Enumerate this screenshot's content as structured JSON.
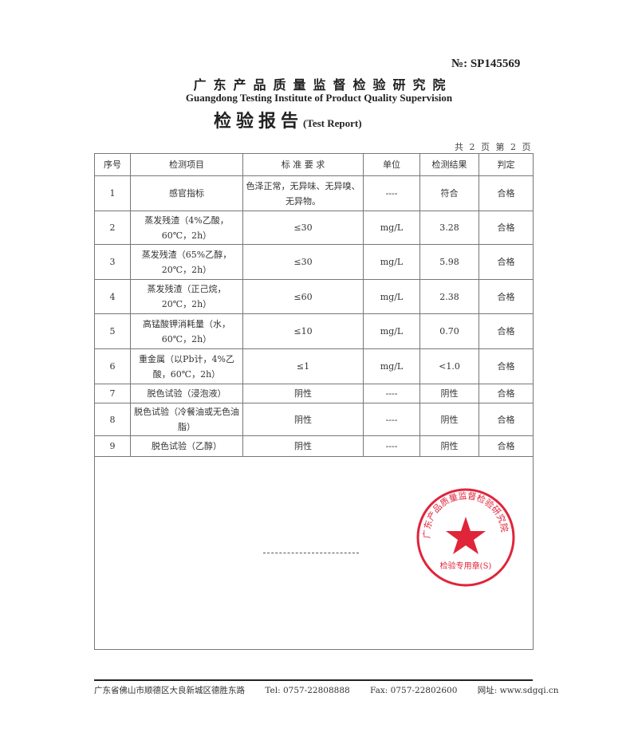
{
  "header": {
    "report_no": "№: SP145569",
    "institute_cn": "广东产品质量监督检验研究院",
    "institute_en": "Guangdong Testing Institute of Product Quality Supervision",
    "title_cn": "检验报告",
    "title_en": "(Test Report)",
    "pages": "共 2 页 第 2 页"
  },
  "stamp": {
    "outer_text": "广东产品质量监督检验研究院",
    "inner_text": "检验专用章(S)",
    "color": "#e0243a"
  },
  "table": {
    "headers": [
      "序号",
      "检测项目",
      "标 准 要 求",
      "单位",
      "检测结果",
      "判定"
    ],
    "rows": [
      {
        "no": "1",
        "item": "感官指标",
        "req": "色泽正常，无异味、无异嗅、无异物。",
        "unit": "----",
        "result": "符合",
        "verdict": "合格"
      },
      {
        "no": "2",
        "item": "蒸发残渣（4%乙酸，60℃，2h）",
        "req": "≤30",
        "unit": "mg/L",
        "result": "3.28",
        "verdict": "合格"
      },
      {
        "no": "3",
        "item": "蒸发残渣（65%乙醇，20℃，2h）",
        "req": "≤30",
        "unit": "mg/L",
        "result": "5.98",
        "verdict": "合格"
      },
      {
        "no": "4",
        "item": "蒸发残渣（正己烷，20℃，2h）",
        "req": "≤60",
        "unit": "mg/L",
        "result": "2.38",
        "verdict": "合格"
      },
      {
        "no": "5",
        "item": "高锰酸钾消耗量（水，60℃，2h）",
        "req": "≤10",
        "unit": "mg/L",
        "result": "0.70",
        "verdict": "合格"
      },
      {
        "no": "6",
        "item": "重金属（以Pb计，4%乙酸，60℃，2h）",
        "req": "≤1",
        "unit": "mg/L",
        "result": "<1.0",
        "verdict": "合格"
      },
      {
        "no": "7",
        "item": "脱色试验（浸泡液）",
        "req": "阴性",
        "unit": "----",
        "result": "阴性",
        "verdict": "合格"
      },
      {
        "no": "8",
        "item": "脱色试验（冷餐油或无色油脂）",
        "req": "阴性",
        "unit": "----",
        "result": "阴性",
        "verdict": "合格"
      },
      {
        "no": "9",
        "item": "脱色试验（乙醇）",
        "req": "阴性",
        "unit": "----",
        "result": "阴性",
        "verdict": "合格"
      }
    ]
  },
  "footer": {
    "address": "广东省佛山市顺德区大良新城区德胜东路",
    "tel": "Tel: 0757-22808888",
    "fax": "Fax: 0757-22802600",
    "web": "网址: www.sdgqi.cn"
  }
}
